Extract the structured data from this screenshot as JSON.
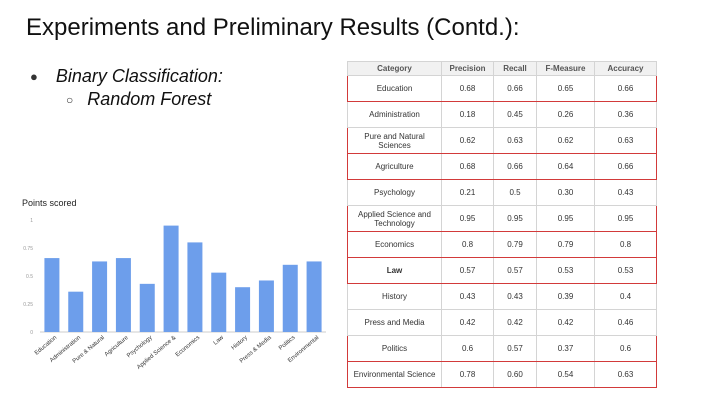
{
  "slide": {
    "title": "Experiments and Preliminary Results (Contd.):",
    "bullet_1": "Binary Classification:",
    "bullet_2": "Random Forest"
  },
  "chart_data": {
    "type": "bar",
    "title": "Points scored",
    "categories": [
      "Education",
      "Administration",
      "Pure & Natural",
      "Agriculture",
      "Psychology",
      "Applied Science &",
      "Economics",
      "Law",
      "History",
      "Press & Media",
      "Politics",
      "Environmental"
    ],
    "values": [
      0.66,
      0.36,
      0.63,
      0.66,
      0.43,
      0.95,
      0.8,
      0.53,
      0.4,
      0.46,
      0.6,
      0.63
    ],
    "ylim": [
      0,
      1
    ],
    "yticks": [
      0,
      0.25,
      0.5,
      0.75,
      1
    ],
    "ytick_labels": [
      "0",
      "0.25",
      "0.5",
      "0.75",
      "1"
    ],
    "bar_color": "#6d9eeb",
    "grid": false
  },
  "table": {
    "headers": [
      "Category",
      "Precision",
      "Recall",
      "F-Measure",
      "Accuracy"
    ],
    "rows": [
      {
        "cells": [
          "Education",
          "0.68",
          "0.66",
          "0.65",
          "0.66"
        ],
        "highlight": true,
        "bold_first": false
      },
      {
        "cells": [
          "Administration",
          "0.18",
          "0.45",
          "0.26",
          "0.36"
        ],
        "highlight": false,
        "bold_first": false
      },
      {
        "cells": [
          "Pure and Natural Sciences",
          "0.62",
          "0.63",
          "0.62",
          "0.63"
        ],
        "highlight": true,
        "bold_first": false
      },
      {
        "cells": [
          "Agriculture",
          "0.68",
          "0.66",
          "0.64",
          "0.66"
        ],
        "highlight": true,
        "bold_first": false
      },
      {
        "cells": [
          "Psychology",
          "0.21",
          "0.5",
          "0.30",
          "0.43"
        ],
        "highlight": false,
        "bold_first": false
      },
      {
        "cells": [
          "Applied Science and Technology",
          "0.95",
          "0.95",
          "0.95",
          "0.95"
        ],
        "highlight": true,
        "bold_first": false
      },
      {
        "cells": [
          "Economics",
          "0.8",
          "0.79",
          "0.79",
          "0.8"
        ],
        "highlight": true,
        "bold_first": false
      },
      {
        "cells": [
          "Law",
          "0.57",
          "0.57",
          "0.53",
          "0.53"
        ],
        "highlight": true,
        "bold_first": true
      },
      {
        "cells": [
          "History",
          "0.43",
          "0.43",
          "0.39",
          "0.4"
        ],
        "highlight": false,
        "bold_first": false
      },
      {
        "cells": [
          "Press and Media",
          "0.42",
          "0.42",
          "0.42",
          "0.46"
        ],
        "highlight": false,
        "bold_first": false
      },
      {
        "cells": [
          "Politics",
          "0.6",
          "0.57",
          "0.37",
          "0.6"
        ],
        "highlight": true,
        "bold_first": false
      },
      {
        "cells": [
          "Environmental Science",
          "0.78",
          "0.60",
          "0.54",
          "0.63"
        ],
        "highlight": true,
        "bold_first": false
      }
    ],
    "highlight_color": "#d23a3a"
  }
}
